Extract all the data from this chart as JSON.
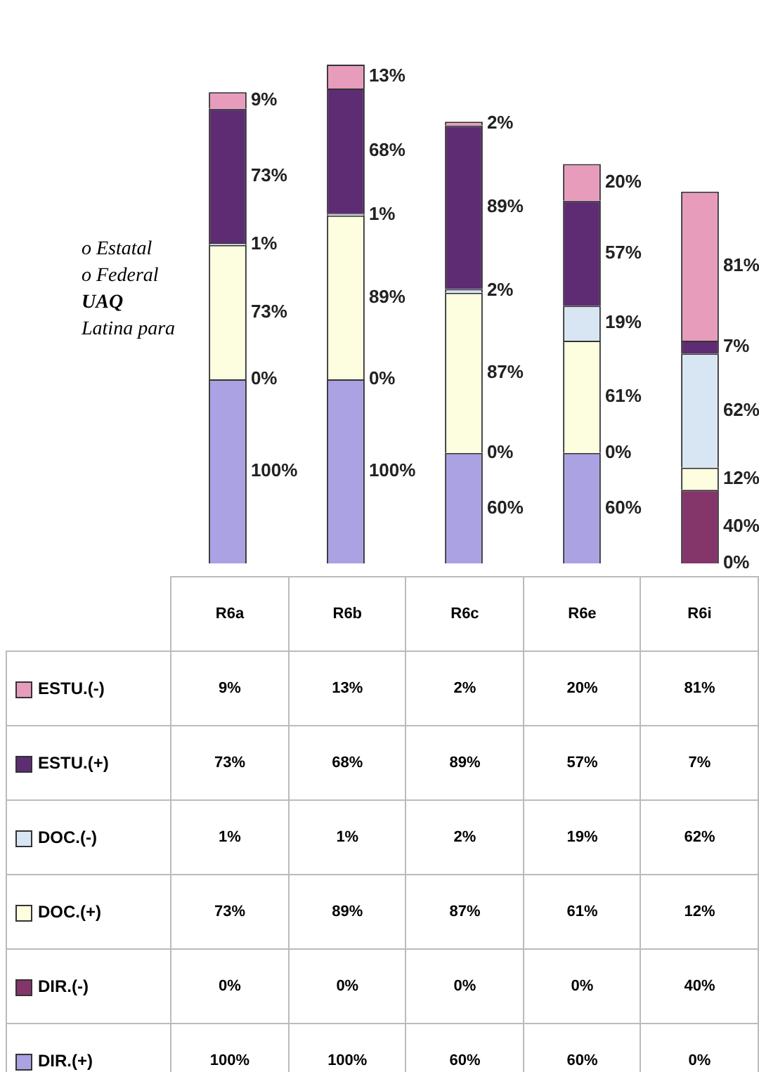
{
  "chart_data": {
    "type": "bar",
    "stacked": true,
    "tick_labels": false,
    "legend": "bottom",
    "categories": [
      "R6a",
      "R6b",
      "R6c",
      "R6e",
      "R6i"
    ],
    "series": [
      {
        "name": "DIR.(+)",
        "color": "#aaa2e2",
        "values": [
          100,
          100,
          60,
          60,
          0
        ],
        "value_labels": [
          "100%",
          "100%",
          "60%",
          "60%",
          "0%"
        ]
      },
      {
        "name": "DIR.(-)",
        "color": "#84356a",
        "values": [
          0,
          0,
          0,
          0,
          40
        ],
        "value_labels": [
          "0%",
          "0%",
          "0%",
          "0%",
          "40%"
        ]
      },
      {
        "name": "DOC.(+)",
        "color": "#fdfde0",
        "values": [
          73,
          89,
          87,
          61,
          12
        ],
        "value_labels": [
          "73%",
          "89%",
          "87%",
          "61%",
          "12%"
        ]
      },
      {
        "name": "DOC.(-)",
        "color": "#d8e6f4",
        "values": [
          1,
          1,
          2,
          19,
          62
        ],
        "value_labels": [
          "1%",
          "1%",
          "2%",
          "19%",
          "62%"
        ]
      },
      {
        "name": "ESTU.(+)",
        "color": "#5e2c72",
        "values": [
          73,
          68,
          89,
          57,
          7
        ],
        "value_labels": [
          "73%",
          "68%",
          "89%",
          "57%",
          "7%"
        ]
      },
      {
        "name": "ESTU.(-)",
        "color": "#e79cbc",
        "values": [
          9,
          13,
          2,
          20,
          81
        ],
        "value_labels": [
          "9%",
          "13%",
          "2%",
          "20%",
          "81%"
        ]
      }
    ],
    "annotations": [
      "o Estatal",
      "o Federal",
      "UAQ",
      "Latina para"
    ]
  }
}
